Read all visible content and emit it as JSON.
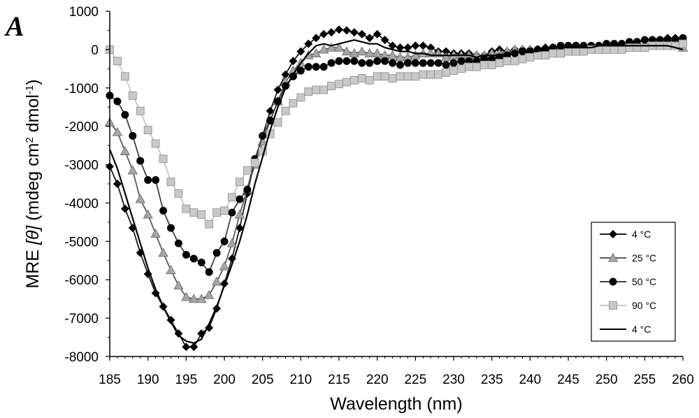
{
  "panel_label": "A",
  "chart_data": {
    "type": "line",
    "title": "",
    "xlabel": "Wavelength (nm)",
    "ylabel_parts": [
      "MRE ",
      "[θ]",
      " (mdeg cm",
      "2",
      " dmol",
      "-1",
      ")"
    ],
    "xlim": [
      185,
      260
    ],
    "ylim": [
      -8000,
      1000
    ],
    "xticks": [
      185,
      190,
      195,
      200,
      205,
      210,
      215,
      220,
      225,
      230,
      235,
      240,
      245,
      250,
      255,
      260
    ],
    "yticks": [
      1000,
      0,
      -1000,
      -2000,
      -3000,
      -4000,
      -5000,
      -6000,
      -7000,
      -8000
    ],
    "legend_position": "bottom-right",
    "series": [
      {
        "name": "4 °C",
        "marker": "diamond",
        "color": "#000000",
        "line_color": "#1a1a1a",
        "x": [
          185,
          186,
          187,
          188,
          189,
          190,
          191,
          192,
          193,
          194,
          195,
          196,
          197,
          198,
          199,
          200,
          201,
          202,
          203,
          204,
          205,
          206,
          207,
          208,
          209,
          210,
          211,
          212,
          213,
          214,
          215,
          216,
          217,
          218,
          219,
          220,
          221,
          222,
          223,
          224,
          225,
          226,
          227,
          228,
          229,
          230,
          231,
          232,
          233,
          234,
          235,
          236,
          237,
          238,
          239,
          240,
          241,
          242,
          243,
          244,
          245,
          246,
          247,
          248,
          249,
          250,
          251,
          252,
          253,
          254,
          255,
          256,
          257,
          258,
          259,
          260
        ],
        "values": [
          -3050,
          -3500,
          -4150,
          -4650,
          -5300,
          -5850,
          -6350,
          -6700,
          -7050,
          -7400,
          -7750,
          -7750,
          -7400,
          -7250,
          -6750,
          -6100,
          -5450,
          -4650,
          -3750,
          -2900,
          -2250,
          -1600,
          -1050,
          -650,
          -300,
          -50,
          150,
          300,
          400,
          450,
          520,
          500,
          450,
          400,
          300,
          400,
          250,
          100,
          50,
          50,
          100,
          100,
          50,
          -50,
          -50,
          -100,
          -100,
          -100,
          -150,
          -150,
          -50,
          0,
          -50,
          0,
          0,
          0,
          0,
          50,
          50,
          50,
          50,
          0,
          50,
          50,
          100,
          100,
          100,
          150,
          150,
          200,
          250,
          250,
          250,
          300,
          300,
          300
        ]
      },
      {
        "name": "25 °C",
        "marker": "triangle",
        "color": "#a6a6a6",
        "line_color": "#5a5a5a",
        "x": [
          185,
          186,
          187,
          188,
          189,
          190,
          191,
          192,
          193,
          194,
          195,
          196,
          197,
          198,
          199,
          200,
          201,
          202,
          203,
          204,
          205,
          206,
          207,
          208,
          209,
          210,
          211,
          212,
          213,
          214,
          215,
          216,
          217,
          218,
          219,
          220,
          221,
          222,
          223,
          224,
          225,
          226,
          227,
          228,
          229,
          230,
          231,
          232,
          233,
          234,
          235,
          236,
          237,
          238,
          239,
          240,
          241,
          242,
          243,
          244,
          245,
          246,
          247,
          248,
          249,
          250,
          251,
          252,
          253,
          254,
          255,
          256,
          257,
          258,
          259,
          260
        ],
        "values": [
          -1900,
          -2150,
          -2650,
          -3150,
          -3900,
          -4300,
          -4800,
          -5300,
          -5750,
          -6150,
          -6450,
          -6500,
          -6500,
          -6400,
          -6050,
          -5650,
          -5050,
          -4300,
          -3650,
          -3000,
          -2400,
          -1850,
          -1350,
          -850,
          -550,
          -350,
          -150,
          -100,
          0,
          50,
          50,
          -50,
          -100,
          -50,
          -100,
          -100,
          -150,
          -150,
          -200,
          -200,
          -150,
          -100,
          -100,
          -100,
          -200,
          -150,
          -150,
          -150,
          -150,
          -150,
          -100,
          -100,
          -50,
          0,
          0,
          0,
          0,
          0,
          50,
          0,
          0,
          0,
          0,
          50,
          50,
          50,
          50,
          100,
          100,
          100,
          100,
          150,
          150,
          150,
          100,
          50
        ]
      },
      {
        "name": "50 °C",
        "marker": "circle",
        "color": "#000000",
        "line_color": "#404040",
        "x": [
          185,
          186,
          187,
          188,
          189,
          190,
          191,
          192,
          193,
          194,
          195,
          196,
          197,
          198,
          199,
          200,
          201,
          202,
          203,
          204,
          205,
          206,
          207,
          208,
          209,
          210,
          211,
          212,
          213,
          214,
          215,
          216,
          217,
          218,
          219,
          220,
          221,
          222,
          223,
          224,
          225,
          226,
          227,
          228,
          229,
          230,
          231,
          232,
          233,
          234,
          235,
          236,
          237,
          238,
          239,
          240,
          241,
          242,
          243,
          244,
          245,
          246,
          247,
          248,
          249,
          250,
          251,
          252,
          253,
          254,
          255,
          256,
          257,
          258,
          259,
          260
        ],
        "values": [
          -1200,
          -1350,
          -1700,
          -2250,
          -2900,
          -3400,
          -3400,
          -4200,
          -4650,
          -5050,
          -5350,
          -5450,
          -5550,
          -5800,
          -5300,
          -5000,
          -4250,
          -3900,
          -3650,
          -2850,
          -2250,
          -1850,
          -1350,
          -950,
          -700,
          -550,
          -450,
          -450,
          -450,
          -350,
          -300,
          -300,
          -300,
          -350,
          -350,
          -300,
          -300,
          -350,
          -400,
          -350,
          -350,
          -350,
          -350,
          -350,
          -400,
          -350,
          -300,
          -300,
          -300,
          -250,
          -250,
          -200,
          -150,
          -100,
          -50,
          -50,
          0,
          0,
          50,
          100,
          100,
          100,
          100,
          100,
          100,
          150,
          150,
          150,
          200,
          200,
          250,
          250,
          250,
          250,
          250,
          300
        ]
      },
      {
        "name": "90 °C",
        "marker": "square",
        "color": "#c8c8c8",
        "line_color": "#c8c8c8",
        "x": [
          185,
          186,
          187,
          188,
          189,
          190,
          191,
          192,
          193,
          194,
          195,
          196,
          197,
          198,
          199,
          200,
          201,
          202,
          203,
          204,
          205,
          206,
          207,
          208,
          209,
          210,
          211,
          212,
          213,
          214,
          215,
          216,
          217,
          218,
          219,
          220,
          221,
          222,
          223,
          224,
          225,
          226,
          227,
          228,
          229,
          230,
          231,
          232,
          233,
          234,
          235,
          236,
          237,
          238,
          239,
          240,
          241,
          242,
          243,
          244,
          245,
          246,
          247,
          248,
          249,
          250,
          251,
          252,
          253,
          254,
          255,
          256,
          257,
          258,
          259,
          260
        ],
        "values": [
          0,
          -300,
          -700,
          -1200,
          -1600,
          -2100,
          -2450,
          -2850,
          -3450,
          -3750,
          -4150,
          -4250,
          -4300,
          -4550,
          -4250,
          -4200,
          -3850,
          -3450,
          -3150,
          -2950,
          -2650,
          -2200,
          -1900,
          -1600,
          -1400,
          -1250,
          -1100,
          -1050,
          -1050,
          -950,
          -900,
          -850,
          -800,
          -750,
          -800,
          -700,
          -700,
          -750,
          -700,
          -700,
          -700,
          -650,
          -650,
          -650,
          -600,
          -550,
          -500,
          -450,
          -450,
          -400,
          -400,
          -350,
          -300,
          -300,
          -250,
          -200,
          -150,
          -150,
          -100,
          -100,
          -50,
          -50,
          -50,
          0,
          0,
          0,
          0,
          0,
          50,
          50,
          50,
          100,
          100,
          100,
          100,
          150
        ]
      },
      {
        "name": "4 °C",
        "marker": "none",
        "color": "#000000",
        "line_color": "#000000",
        "x": [
          185,
          186,
          187,
          188,
          189,
          190,
          191,
          192,
          193,
          194,
          195,
          196,
          197,
          198,
          199,
          200,
          201,
          202,
          203,
          204,
          205,
          206,
          207,
          208,
          209,
          210,
          211,
          212,
          213,
          214,
          215,
          216,
          217,
          218,
          219,
          220,
          221,
          222,
          223,
          224,
          225,
          226,
          227,
          228,
          229,
          230,
          231,
          232,
          233,
          234,
          235,
          236,
          237,
          238,
          239,
          240,
          241,
          242,
          243,
          244,
          245,
          246,
          247,
          248,
          249,
          250,
          251,
          252,
          253,
          254,
          255,
          256,
          257,
          258,
          259,
          260
        ],
        "values": [
          -2600,
          -3100,
          -3750,
          -4400,
          -5050,
          -5700,
          -6250,
          -6700,
          -7100,
          -7450,
          -7600,
          -7650,
          -7550,
          -7150,
          -6700,
          -6150,
          -5600,
          -5000,
          -4300,
          -3500,
          -2800,
          -2100,
          -1500,
          -1000,
          -650,
          -350,
          -100,
          100,
          150,
          100,
          150,
          200,
          250,
          200,
          150,
          150,
          50,
          0,
          -50,
          -50,
          -100,
          -100,
          -150,
          -150,
          -150,
          -150,
          -150,
          -150,
          -200,
          -150,
          -150,
          -150,
          -100,
          -100,
          -50,
          -50,
          -50,
          0,
          50,
          50,
          50,
          50,
          50,
          50,
          100,
          100,
          100,
          100,
          100,
          100,
          100,
          100,
          100,
          100,
          50,
          0
        ]
      }
    ]
  }
}
